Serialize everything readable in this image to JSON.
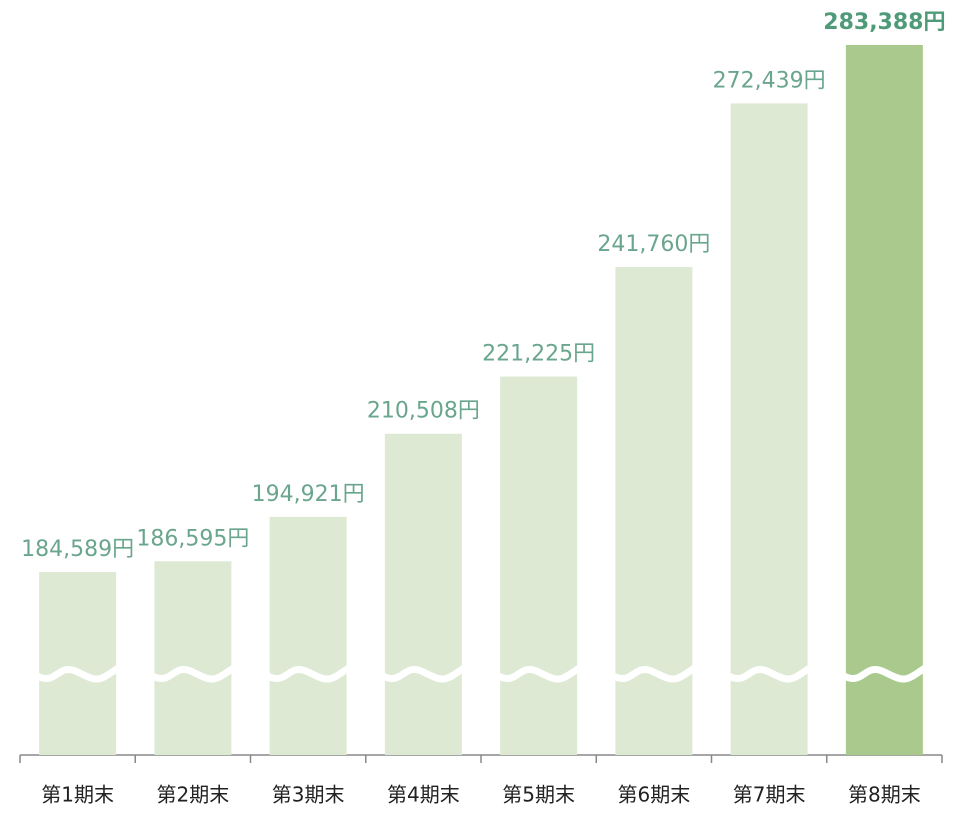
{
  "chart_data": {
    "type": "bar",
    "categories": [
      "第1期末",
      "第2期末",
      "第3期末",
      "第4期末",
      "第5期末",
      "第6期末",
      "第7期末",
      "第8期末"
    ],
    "values": [
      184589,
      186595,
      194921,
      210508,
      221225,
      241760,
      272439,
      283388
    ],
    "value_labels": [
      "184,589円",
      "186,595円",
      "194,921円",
      "210,508円",
      "221,225円",
      "241,760円",
      "272,439円",
      "283,388円"
    ],
    "colors": [
      "#dde9d3",
      "#dde9d3",
      "#dde9d3",
      "#dde9d3",
      "#dde9d3",
      "#dde9d3",
      "#dde9d3",
      "#a9c98d"
    ],
    "highlight_index": 7,
    "axis_break": true
  }
}
